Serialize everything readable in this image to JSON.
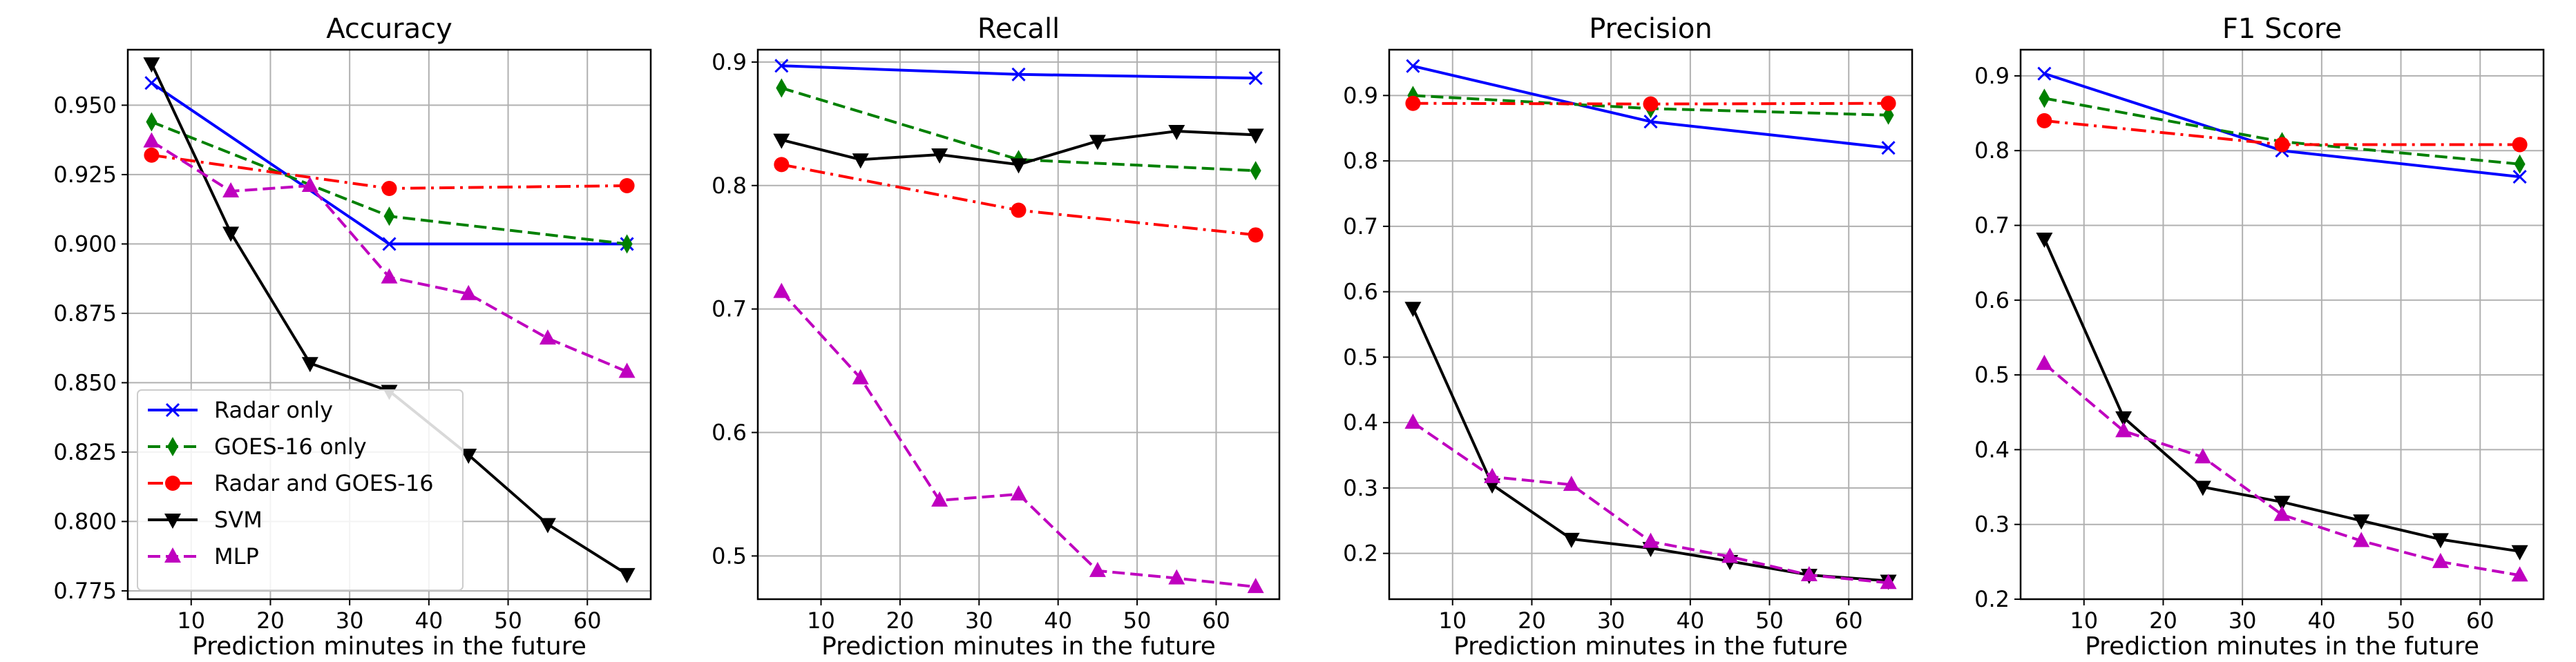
{
  "chart_data": [
    {
      "type": "line",
      "title": "Accuracy",
      "xlabel": "Prediction minutes in the future",
      "ylabel": "",
      "xlim": [
        2,
        68
      ],
      "ylim": [
        0.772,
        0.97
      ],
      "xticks": [
        10,
        20,
        30,
        40,
        50,
        60
      ],
      "yticks": [
        0.775,
        0.8,
        0.825,
        0.85,
        0.875,
        0.9,
        0.925,
        0.95
      ],
      "ytick_labels": [
        "0.775",
        "0.800",
        "0.825",
        "0.850",
        "0.875",
        "0.900",
        "0.925",
        "0.950"
      ],
      "legend": "lower-left",
      "series": [
        {
          "name": "Radar only",
          "x": [
            5,
            35,
            65
          ],
          "y": [
            0.958,
            0.9,
            0.9
          ]
        },
        {
          "name": "GOES-16 only",
          "x": [
            5,
            35,
            65
          ],
          "y": [
            0.944,
            0.91,
            0.9
          ]
        },
        {
          "name": "Radar and GOES-16",
          "x": [
            5,
            35,
            65
          ],
          "y": [
            0.932,
            0.92,
            0.921
          ]
        },
        {
          "name": "SVM",
          "x": [
            5,
            15,
            25,
            35,
            45,
            55,
            65
          ],
          "y": [
            0.965,
            0.904,
            0.857,
            0.847,
            0.824,
            0.799,
            0.781
          ]
        },
        {
          "name": "MLP",
          "x": [
            5,
            15,
            25,
            35,
            45,
            55,
            65
          ],
          "y": [
            0.937,
            0.919,
            0.921,
            0.888,
            0.882,
            0.866,
            0.854
          ]
        }
      ]
    },
    {
      "type": "line",
      "title": "Recall",
      "xlabel": "Prediction minutes in the future",
      "ylabel": "",
      "xlim": [
        2,
        68
      ],
      "ylim": [
        0.465,
        0.91
      ],
      "xticks": [
        10,
        20,
        30,
        40,
        50,
        60
      ],
      "yticks": [
        0.5,
        0.6,
        0.7,
        0.8,
        0.9
      ],
      "ytick_labels": [
        "0.5",
        "0.6",
        "0.7",
        "0.8",
        "0.9"
      ],
      "series": [
        {
          "name": "Radar only",
          "x": [
            5,
            35,
            65
          ],
          "y": [
            0.897,
            0.89,
            0.887
          ]
        },
        {
          "name": "GOES-16 only",
          "x": [
            5,
            35,
            65
          ],
          "y": [
            0.879,
            0.821,
            0.812
          ]
        },
        {
          "name": "Radar and GOES-16",
          "x": [
            5,
            35,
            65
          ],
          "y": [
            0.817,
            0.78,
            0.76
          ]
        },
        {
          "name": "SVM",
          "x": [
            5,
            15,
            25,
            35,
            45,
            55,
            65
          ],
          "y": [
            0.837,
            0.821,
            0.825,
            0.817,
            0.836,
            0.844,
            0.841
          ]
        },
        {
          "name": "MLP",
          "x": [
            5,
            15,
            25,
            35,
            45,
            55,
            65
          ],
          "y": [
            0.714,
            0.644,
            0.545,
            0.55,
            0.488,
            0.482,
            0.475
          ]
        }
      ]
    },
    {
      "type": "line",
      "title": "Precision",
      "xlabel": "Prediction minutes in the future",
      "ylabel": "",
      "xlim": [
        2,
        68
      ],
      "ylim": [
        0.13,
        0.97
      ],
      "xticks": [
        10,
        20,
        30,
        40,
        50,
        60
      ],
      "yticks": [
        0.2,
        0.3,
        0.4,
        0.5,
        0.6,
        0.7,
        0.8,
        0.9
      ],
      "ytick_labels": [
        "0.2",
        "0.3",
        "0.4",
        "0.5",
        "0.6",
        "0.7",
        "0.8",
        "0.9"
      ],
      "series": [
        {
          "name": "Radar only",
          "x": [
            5,
            35,
            65
          ],
          "y": [
            0.945,
            0.86,
            0.82
          ]
        },
        {
          "name": "GOES-16 only",
          "x": [
            5,
            35,
            65
          ],
          "y": [
            0.9,
            0.88,
            0.87
          ]
        },
        {
          "name": "Radar and GOES-16",
          "x": [
            5,
            35,
            65
          ],
          "y": [
            0.888,
            0.887,
            0.888
          ]
        },
        {
          "name": "SVM",
          "x": [
            5,
            15,
            25,
            35,
            45,
            55,
            65
          ],
          "y": [
            0.575,
            0.305,
            0.222,
            0.208,
            0.188,
            0.167,
            0.158
          ]
        },
        {
          "name": "MLP",
          "x": [
            5,
            15,
            25,
            35,
            45,
            55,
            65
          ],
          "y": [
            0.4,
            0.317,
            0.305,
            0.218,
            0.195,
            0.167,
            0.155
          ]
        }
      ]
    },
    {
      "type": "line",
      "title": "F1 Score",
      "xlabel": "Prediction minutes in the future",
      "ylabel": "",
      "xlim": [
        2,
        68
      ],
      "ylim": [
        0.2,
        0.935
      ],
      "xticks": [
        10,
        20,
        30,
        40,
        50,
        60
      ],
      "yticks": [
        0.2,
        0.3,
        0.4,
        0.5,
        0.6,
        0.7,
        0.8,
        0.9
      ],
      "ytick_labels": [
        "0.2",
        "0.3",
        "0.4",
        "0.5",
        "0.6",
        "0.7",
        "0.8",
        "0.9"
      ],
      "series": [
        {
          "name": "Radar only",
          "x": [
            5,
            35,
            65
          ],
          "y": [
            0.903,
            0.8,
            0.765
          ]
        },
        {
          "name": "GOES-16 only",
          "x": [
            5,
            35,
            65
          ],
          "y": [
            0.87,
            0.812,
            0.782
          ]
        },
        {
          "name": "Radar and GOES-16",
          "x": [
            5,
            35,
            65
          ],
          "y": [
            0.84,
            0.808,
            0.808
          ]
        },
        {
          "name": "SVM",
          "x": [
            5,
            15,
            25,
            35,
            45,
            55,
            65
          ],
          "y": [
            0.682,
            0.443,
            0.35,
            0.33,
            0.305,
            0.28,
            0.264
          ]
        },
        {
          "name": "MLP",
          "x": [
            5,
            15,
            25,
            35,
            45,
            55,
            65
          ],
          "y": [
            0.515,
            0.425,
            0.39,
            0.313,
            0.278,
            0.25,
            0.232
          ]
        }
      ]
    }
  ],
  "series_styles": [
    {
      "name": "Radar only",
      "color": "#0000ff",
      "dash": "solid",
      "marker": "x"
    },
    {
      "name": "GOES-16 only",
      "color": "#008000",
      "dash": "dashed",
      "marker": "thin_diamond"
    },
    {
      "name": "Radar and GOES-16",
      "color": "#ff0000",
      "dash": "dashdot",
      "marker": "circle"
    },
    {
      "name": "SVM",
      "color": "#000000",
      "dash": "solid",
      "marker": "triangle_down"
    },
    {
      "name": "MLP",
      "color": "#bf00bf",
      "dash": "dashed",
      "marker": "triangle_up"
    }
  ]
}
